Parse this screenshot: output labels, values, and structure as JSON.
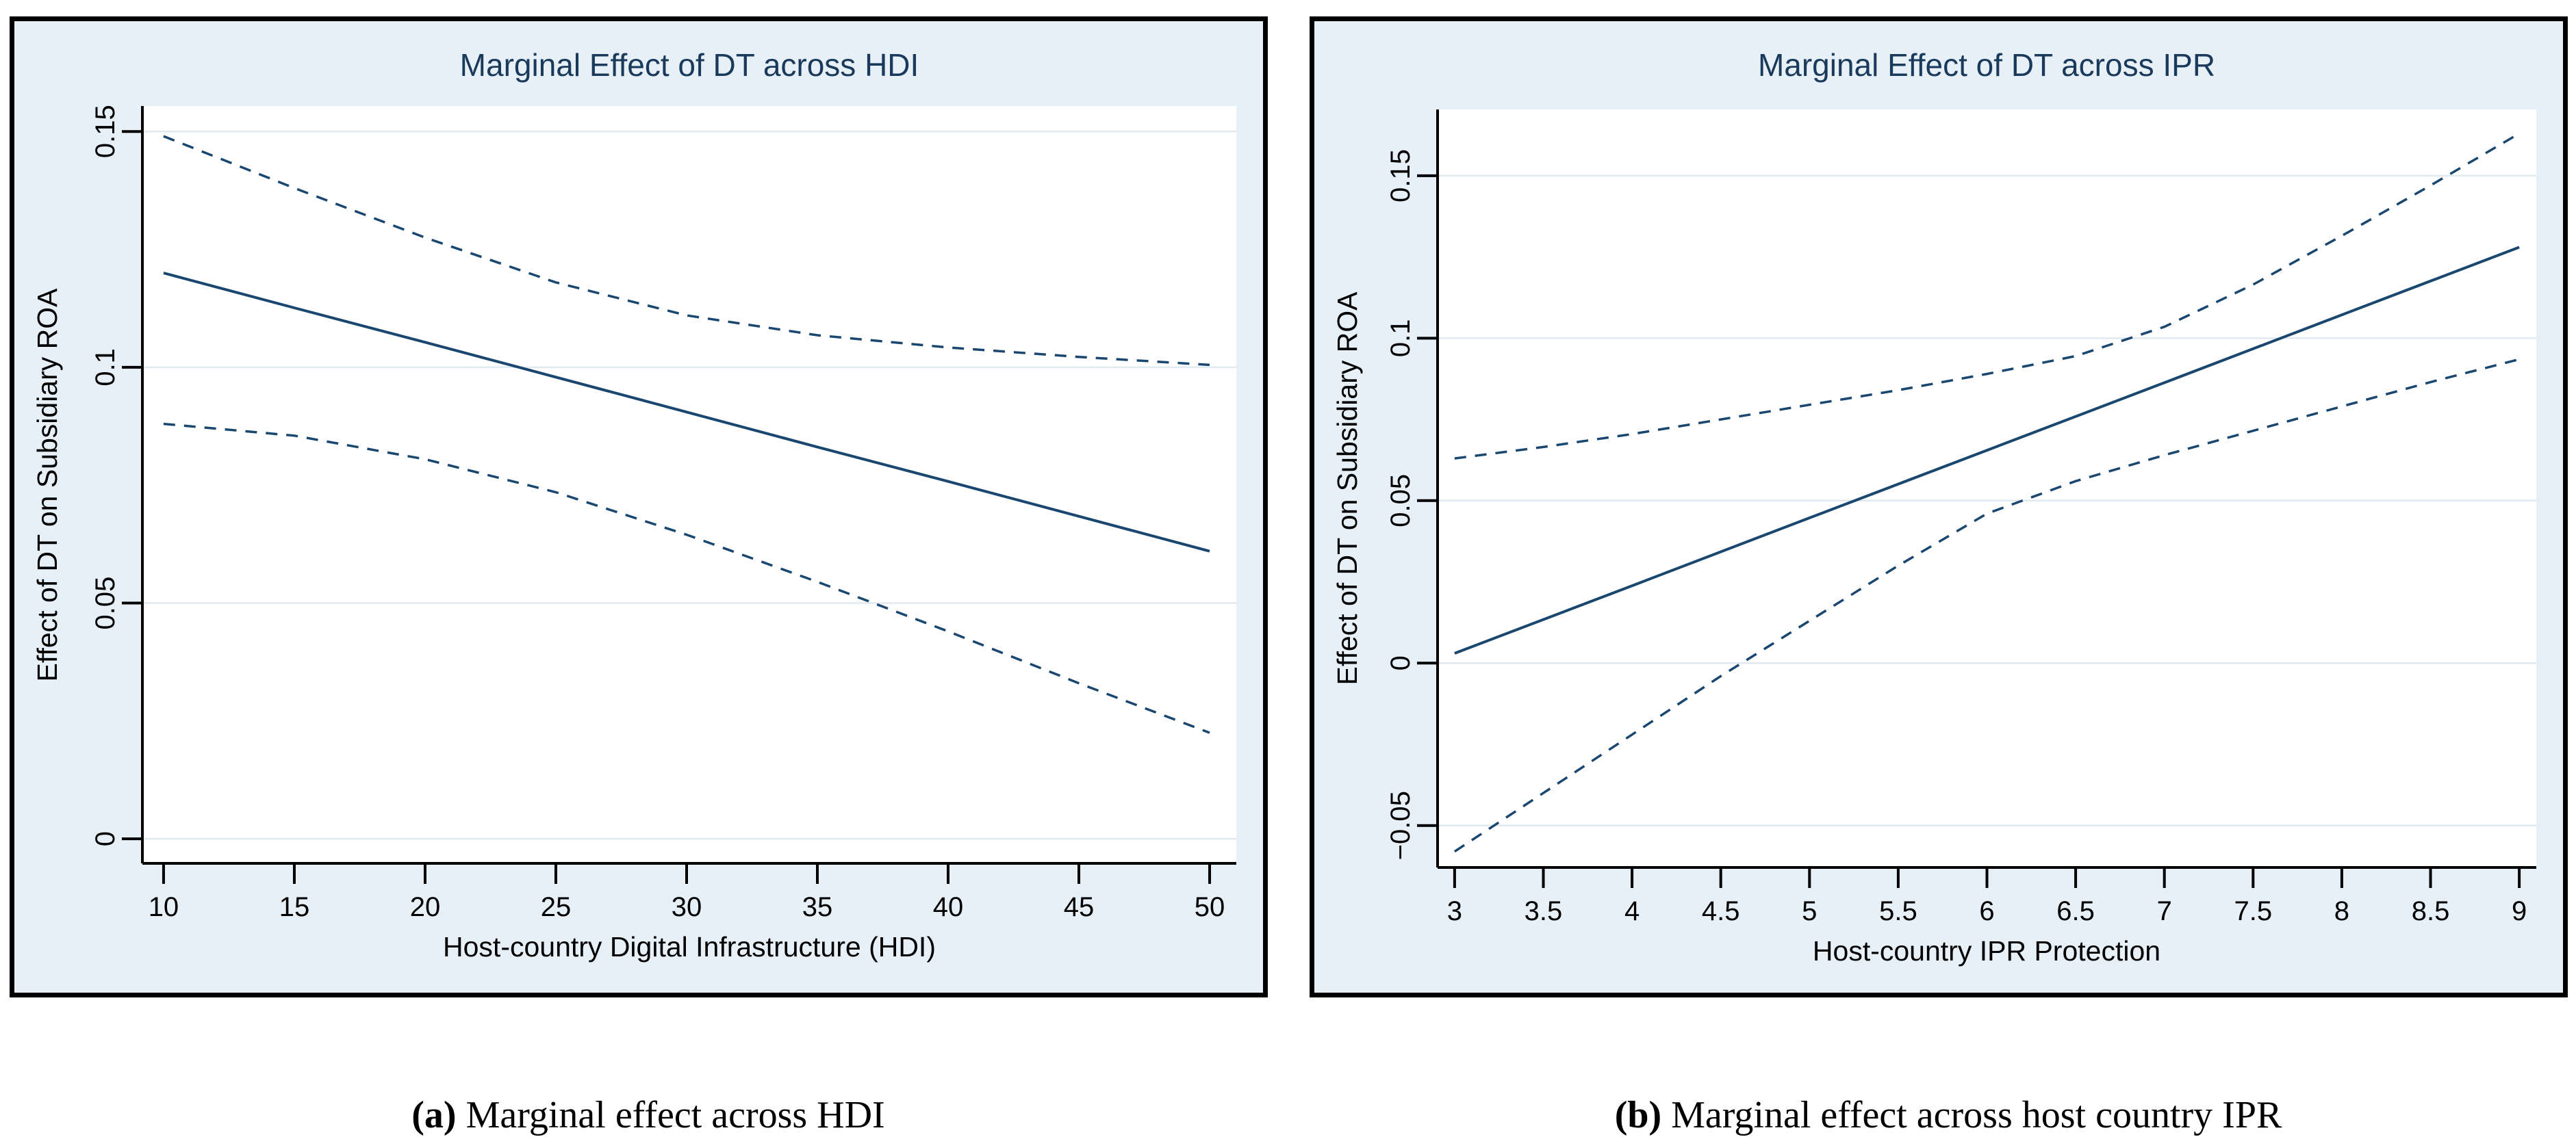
{
  "style": {
    "line_navy": "#1a476f",
    "title_navy": "#1a3a5c",
    "panel_background": "#e7eff7",
    "plot_background": "#ffffff",
    "gridline_color": "#e1e9f1",
    "axis_color": "#000000",
    "caption_color": "#000000"
  },
  "figure": {
    "captions": [
      {
        "label": "(a)",
        "text": " Marginal effect across HDI"
      },
      {
        "label": "(b)",
        "text": " Marginal effect across host country IPR"
      }
    ]
  },
  "chart_data": [
    {
      "type": "line",
      "title": "Marginal Effect of DT across HDI",
      "xlabel": "Host-country Digital Infrastructure (HDI)",
      "ylabel": "Effect of DT on Subsidiary ROA",
      "legend_position": "none",
      "grid": "horizontal",
      "xlim": [
        9.19,
        51.02
      ],
      "ylim": [
        -0.0052,
        0.1554
      ],
      "xtick_values": [
        10,
        15,
        20,
        25,
        30,
        35,
        40,
        45,
        50
      ],
      "xtick_labels": [
        "10",
        "15",
        "20",
        "25",
        "30",
        "35",
        "40",
        "45",
        "50"
      ],
      "ytick_values": [
        0,
        0.05,
        0.1,
        0.15
      ],
      "ytick_labels": [
        "0",
        "0.05",
        "0.1",
        "0.15"
      ],
      "series": [
        {
          "name": "marginal-effect",
          "style": "solid",
          "x": [
            10,
            15,
            20,
            25,
            30,
            35,
            40,
            45,
            50
          ],
          "y": [
            0.12,
            0.1126,
            0.1053,
            0.0979,
            0.0905,
            0.0831,
            0.0758,
            0.0684,
            0.061
          ]
        },
        {
          "name": "ci-upper",
          "style": "dashed",
          "x": [
            10,
            15,
            20,
            25,
            30,
            35,
            40,
            45,
            50
          ],
          "y": [
            0.149,
            0.138,
            0.1275,
            0.118,
            0.111,
            0.1068,
            0.1042,
            0.1022,
            0.1005
          ]
        },
        {
          "name": "ci-lower",
          "style": "dashed",
          "x": [
            10,
            15,
            20,
            25,
            30,
            35,
            40,
            45,
            50
          ],
          "y": [
            0.088,
            0.0855,
            0.0805,
            0.0735,
            0.0645,
            0.0545,
            0.044,
            0.033,
            0.0225
          ]
        }
      ]
    },
    {
      "type": "line",
      "title": "Marginal Effect of DT across IPR",
      "xlabel": "Host-country IPR Protection",
      "ylabel": "Effect of DT on Subsidiary ROA",
      "legend_position": "none",
      "grid": "horizontal",
      "xlim": [
        2.904,
        9.096
      ],
      "ylim": [
        -0.0629,
        0.1704
      ],
      "xtick_values": [
        3,
        3.5,
        4,
        4.5,
        5,
        5.5,
        6,
        6.5,
        7,
        7.5,
        8,
        8.5,
        9
      ],
      "xtick_labels": [
        "3",
        "3.5",
        "4",
        "4.5",
        "5",
        "5.5",
        "6",
        "6.5",
        "7",
        "7.5",
        "8",
        "8.5",
        "9"
      ],
      "ytick_values": [
        -0.05,
        0,
        0.05,
        0.1,
        0.15
      ],
      "ytick_labels": [
        "−0.05",
        "0",
        "0.05",
        "0.1",
        "0.15"
      ],
      "series": [
        {
          "name": "marginal-effect",
          "style": "solid",
          "x": [
            3,
            4,
            5,
            6,
            7,
            8,
            9
          ],
          "y": [
            0.003,
            0.0238,
            0.0447,
            0.0655,
            0.0863,
            0.1072,
            0.128
          ]
        },
        {
          "name": "ci-upper",
          "style": "dashed",
          "x": [
            3,
            3.5,
            4,
            4.5,
            5,
            5.5,
            6,
            6.5,
            7,
            7.5,
            8,
            8.5,
            9
          ],
          "y": [
            0.063,
            0.0665,
            0.0705,
            0.075,
            0.0795,
            0.084,
            0.089,
            0.0945,
            0.1035,
            0.1165,
            0.1315,
            0.147,
            0.163
          ]
        },
        {
          "name": "ci-lower",
          "style": "dashed",
          "x": [
            3,
            3.5,
            4,
            4.5,
            5,
            5.5,
            6,
            6.5,
            7,
            7.5,
            8,
            8.5,
            9
          ],
          "y": [
            -0.058,
            -0.04,
            -0.022,
            -0.004,
            0.013,
            0.03,
            0.046,
            0.056,
            0.064,
            0.0715,
            0.079,
            0.0865,
            0.0935
          ]
        }
      ]
    }
  ]
}
